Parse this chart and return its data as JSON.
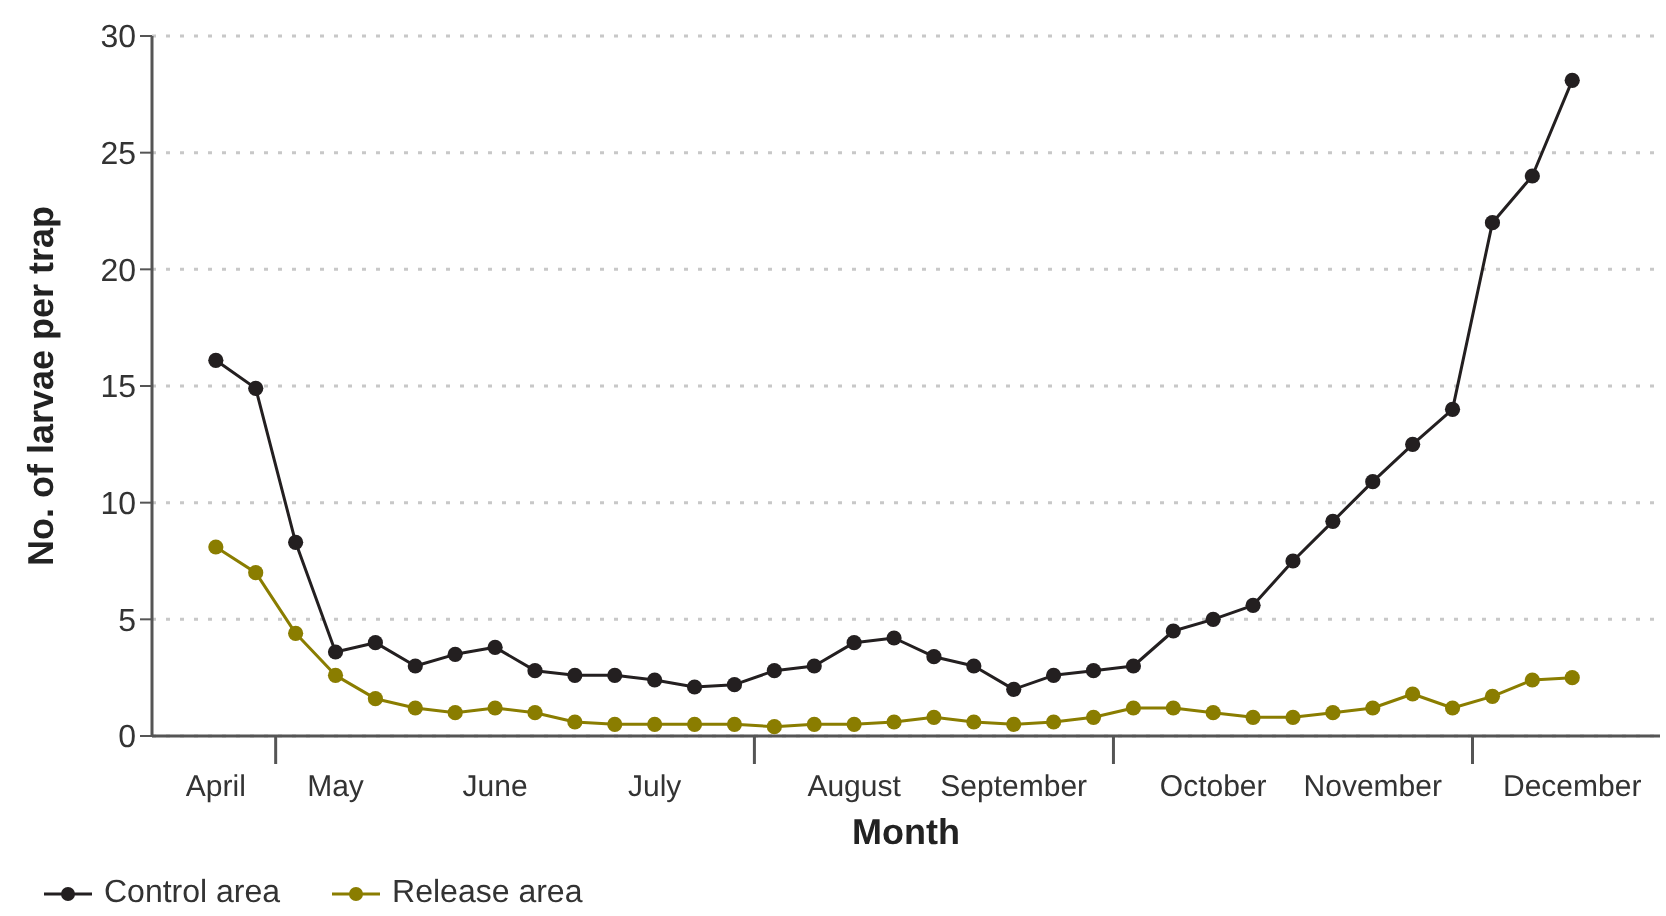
{
  "chart_data": {
    "type": "line",
    "xlabel": "Month",
    "ylabel": "No. of larvae per trap",
    "categories": [
      "April",
      null,
      null,
      "May",
      null,
      null,
      null,
      "June",
      null,
      null,
      null,
      "July",
      null,
      null,
      null,
      null,
      "August",
      null,
      null,
      null,
      "September",
      null,
      null,
      null,
      null,
      "October",
      null,
      null,
      null,
      "November",
      null,
      null,
      null,
      null,
      "December",
      null
    ],
    "ylim": [
      0,
      30
    ],
    "yticks": [
      0,
      5,
      10,
      15,
      20,
      25,
      30
    ],
    "grid": "y",
    "legend": "bottom left",
    "marker": "circle",
    "line_style": "solid",
    "series": [
      {
        "name": "Control area",
        "color": "#231f20",
        "values": [
          16.1,
          14.9,
          8.3,
          3.6,
          4.0,
          3.0,
          3.5,
          3.8,
          2.8,
          2.6,
          2.6,
          2.4,
          2.1,
          2.2,
          2.8,
          3.0,
          4.0,
          4.2,
          3.4,
          3.0,
          2.0,
          2.6,
          2.8,
          3.0,
          4.5,
          5.0,
          5.6,
          7.5,
          9.2,
          10.9,
          12.5,
          14.0,
          22.0,
          24.0,
          28.1,
          null
        ]
      },
      {
        "name": "Release area",
        "color": "#8a7d00",
        "values": [
          8.1,
          7.0,
          4.4,
          2.6,
          1.6,
          1.2,
          1.0,
          1.2,
          1.0,
          0.6,
          0.5,
          0.5,
          0.5,
          0.5,
          0.4,
          0.5,
          0.5,
          0.6,
          0.8,
          0.6,
          0.5,
          0.6,
          0.8,
          1.2,
          1.2,
          1.0,
          0.8,
          0.8,
          1.0,
          1.2,
          1.8,
          1.2,
          1.7,
          2.4,
          2.5,
          null
        ]
      }
    ]
  }
}
